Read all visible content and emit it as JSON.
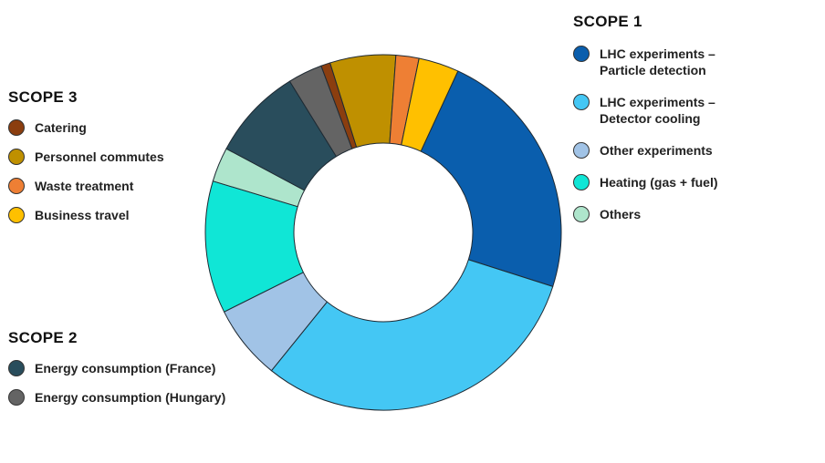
{
  "chart_data": {
    "type": "pie",
    "donut": true,
    "unit": "%",
    "slices": [
      {
        "label": "LHC experiments –\nParticle detection",
        "value": 22.0,
        "color": "#0a5ead",
        "scope": "scope1"
      },
      {
        "label": "LHC experiments –\nDetector cooling",
        "value": 29.5,
        "color": "#44c7f4",
        "scope": "scope1"
      },
      {
        "label": "Other experiments",
        "value": 6.5,
        "color": "#a1c3e6",
        "scope": "scope1"
      },
      {
        "label": "Heating (gas + fuel)",
        "value": 11.5,
        "color": "#10e6d6",
        "scope": "scope1"
      },
      {
        "label": "Others",
        "value": 3.0,
        "color": "#aee5cc",
        "scope": "scope1"
      },
      {
        "label": "Energy consumption (France)",
        "value": 8.0,
        "color": "#294d5c",
        "scope": "scope2"
      },
      {
        "label": "Energy consumption (Hungary)",
        "value": 3.0,
        "color": "#646464",
        "scope": "scope2"
      },
      {
        "label": "Catering",
        "value": 0.8,
        "color": "#8b3e0f",
        "scope": "scope3"
      },
      {
        "label": "Personnel commutes",
        "value": 5.7,
        "color": "#bf9000",
        "scope": "scope3"
      },
      {
        "label": "Waste treatment",
        "value": 2.0,
        "color": "#ee7f34",
        "scope": "scope3"
      },
      {
        "label": "Business travel",
        "value": 3.5,
        "color": "#ffc000",
        "scope": "scope3"
      }
    ],
    "start_angle_deg": 24.8,
    "direction": "clockwise",
    "legend_groups": [
      {
        "id": "scope1",
        "title": "SCOPE 1"
      },
      {
        "id": "scope2",
        "title": "SCOPE 2"
      },
      {
        "id": "scope3",
        "title": "SCOPE 3"
      }
    ]
  },
  "legend": {
    "scope1": {
      "title": "SCOPE 1",
      "items": [
        {
          "label": "LHC experiments –\nParticle detection",
          "color": "#0a5ead"
        },
        {
          "label": "LHC experiments –\nDetector cooling",
          "color": "#44c7f4"
        },
        {
          "label": "Other experiments",
          "color": "#a1c3e6"
        },
        {
          "label": "Heating (gas + fuel)",
          "color": "#10e6d6"
        },
        {
          "label": "Others",
          "color": "#aee5cc"
        }
      ]
    },
    "scope3": {
      "title": "SCOPE 3",
      "items": [
        {
          "label": "Catering",
          "color": "#8b3e0f"
        },
        {
          "label": "Personnel commutes",
          "color": "#bf9000"
        },
        {
          "label": "Waste treatment",
          "color": "#ee7f34"
        },
        {
          "label": "Business travel",
          "color": "#ffc000"
        }
      ]
    },
    "scope2": {
      "title": "SCOPE 2",
      "items": [
        {
          "label": "Energy consumption (France)",
          "color": "#294d5c"
        },
        {
          "label": "Energy consumption (Hungary)",
          "color": "#646464"
        }
      ]
    }
  }
}
